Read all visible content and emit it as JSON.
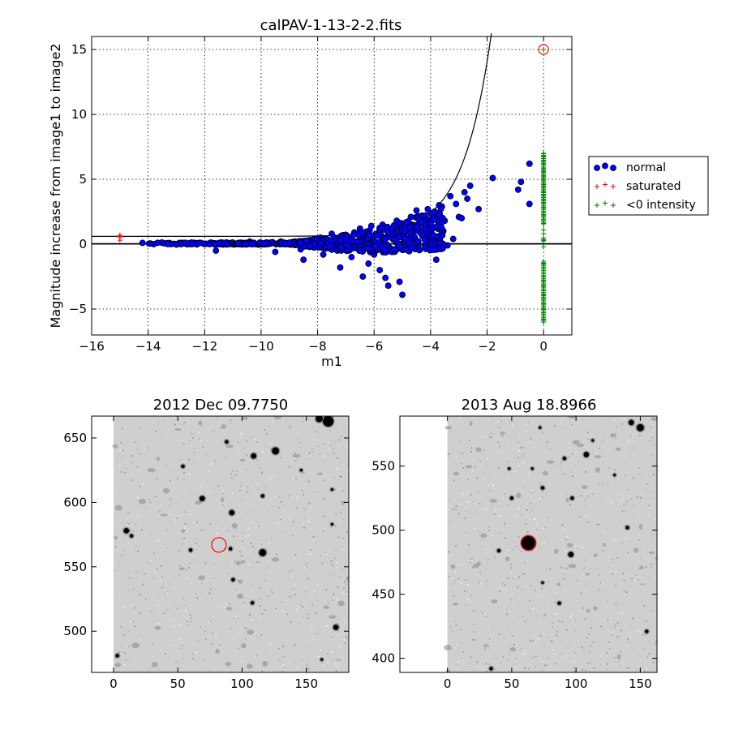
{
  "chart_data": [
    {
      "type": "scatter",
      "title": "calPAV-1-13-2-2.fits",
      "xlabel": "m1",
      "ylabel": "Magnitude increase from image1 to image2",
      "xlim": [
        -16,
        1
      ],
      "ylim": [
        -7,
        16
      ],
      "xticks": [
        -16,
        -14,
        -12,
        -10,
        -8,
        -6,
        -4,
        -2,
        0
      ],
      "xtick_labels": [
        "−16",
        "−14",
        "−12",
        "−10",
        "−8",
        "−6",
        "−4",
        "−2",
        "0"
      ],
      "yticks": [
        -5,
        0,
        5,
        10,
        15
      ],
      "ytick_labels": [
        "−5",
        "0",
        "5",
        "10",
        "15"
      ],
      "grid": true,
      "legend_position": "right, outside axes",
      "colors": {
        "normal": "#0000ff",
        "saturated": "#ff0000",
        "negative": "#008000",
        "circle": "#ff0000"
      },
      "series": [
        {
          "name": "normal",
          "marker": "circle",
          "color": "#0000ff",
          "description_points": "dense band rising from ~0 at m1=-14 to ~2-4 near m1=-3",
          "sample_points": [
            [
              -14.2,
              0.1
            ],
            [
              -13.8,
              0.0
            ],
            [
              -13.5,
              0.1
            ],
            [
              -13.2,
              0.0
            ],
            [
              -12.8,
              0.05
            ],
            [
              -12.5,
              0.0
            ],
            [
              -12.2,
              0.1
            ],
            [
              -12.0,
              0.0
            ],
            [
              -11.8,
              0.1
            ],
            [
              -11.6,
              -0.5
            ],
            [
              -11.4,
              0.1
            ],
            [
              -11.2,
              0.0
            ],
            [
              -11.0,
              0.05
            ],
            [
              -10.8,
              0.1
            ],
            [
              -10.6,
              0.0
            ],
            [
              -10.4,
              0.2
            ],
            [
              -10.2,
              0.0
            ],
            [
              -10.0,
              0.1
            ],
            [
              -9.8,
              0.0
            ],
            [
              -9.6,
              0.15
            ],
            [
              -9.5,
              -0.6
            ],
            [
              -9.3,
              0.2
            ],
            [
              -9.0,
              0.05
            ],
            [
              -8.8,
              0.2
            ],
            [
              -8.6,
              -0.4
            ],
            [
              -8.5,
              -1.2
            ],
            [
              -8.3,
              0.3
            ],
            [
              -8.1,
              0.0
            ],
            [
              -7.9,
              0.5
            ],
            [
              -7.8,
              -0.8
            ],
            [
              -7.6,
              0.3
            ],
            [
              -7.5,
              0.8
            ],
            [
              -7.3,
              -0.5
            ],
            [
              -7.2,
              -1.8
            ],
            [
              -7.1,
              0.6
            ],
            [
              -6.9,
              0.2
            ],
            [
              -6.8,
              -1.0
            ],
            [
              -6.7,
              0.9
            ],
            [
              -6.6,
              -0.3
            ],
            [
              -6.5,
              1.2
            ],
            [
              -6.4,
              -2.5
            ],
            [
              -6.3,
              0.4
            ],
            [
              -6.2,
              -1.5
            ],
            [
              -6.1,
              1.4
            ],
            [
              -6.0,
              -0.8
            ],
            [
              -5.9,
              0.7
            ],
            [
              -5.8,
              -2.0
            ],
            [
              -5.7,
              1.5
            ],
            [
              -5.6,
              -2.6
            ],
            [
              -5.5,
              -3.2
            ],
            [
              -5.4,
              1.0
            ],
            [
              -5.3,
              -0.4
            ],
            [
              -5.2,
              1.8
            ],
            [
              -5.1,
              -2.9
            ],
            [
              -5.0,
              -3.9
            ],
            [
              -4.9,
              1.2
            ],
            [
              -4.8,
              0.3
            ],
            [
              -4.7,
              2.1
            ],
            [
              -4.6,
              -0.2
            ],
            [
              -4.5,
              2.6
            ],
            [
              -4.4,
              1.0
            ],
            [
              -4.3,
              2.2
            ],
            [
              -4.2,
              0.5
            ],
            [
              -4.1,
              2.7
            ],
            [
              -4.0,
              1.5
            ],
            [
              -3.9,
              0.2
            ],
            [
              -3.8,
              -1.2
            ],
            [
              -3.7,
              3.0
            ],
            [
              -3.6,
              2.9
            ],
            [
              -3.5,
              1.8
            ],
            [
              -3.4,
              -0.1
            ],
            [
              -3.3,
              3.7
            ],
            [
              -3.2,
              0.4
            ],
            [
              -3.1,
              3.1
            ],
            [
              -3.0,
              2.1
            ],
            [
              -2.9,
              2.0
            ],
            [
              -2.8,
              4.0
            ],
            [
              -2.7,
              3.5
            ],
            [
              -2.6,
              4.5
            ],
            [
              -2.3,
              2.7
            ],
            [
              -1.8,
              5.1
            ],
            [
              -0.9,
              4.2
            ],
            [
              -0.8,
              4.8
            ],
            [
              -0.5,
              3.1
            ],
            [
              -0.5,
              6.2
            ]
          ]
        },
        {
          "name": "saturated",
          "marker": "plus",
          "color": "#ff0000",
          "points": [
            [
              -15.0,
              0.3
            ],
            [
              -15.0,
              0.5
            ],
            [
              -15.0,
              0.6
            ],
            [
              -15.0,
              0.7
            ]
          ]
        },
        {
          "name": "<0 intensity",
          "marker": "plus",
          "color": "#008000",
          "points": [
            [
              0,
              7.0
            ],
            [
              0,
              6.8
            ],
            [
              0,
              6.6
            ],
            [
              0,
              6.4
            ],
            [
              0,
              6.2
            ],
            [
              0,
              6.0
            ],
            [
              0,
              5.8
            ],
            [
              0,
              5.6
            ],
            [
              0,
              5.4
            ],
            [
              0,
              5.2
            ],
            [
              0,
              5.0
            ],
            [
              0,
              4.8
            ],
            [
              0,
              4.6
            ],
            [
              0,
              4.4
            ],
            [
              0,
              4.2
            ],
            [
              0,
              4.0
            ],
            [
              0,
              3.8
            ],
            [
              0,
              3.6
            ],
            [
              0,
              3.4
            ],
            [
              0,
              3.2
            ],
            [
              0,
              3.0
            ],
            [
              0,
              2.8
            ],
            [
              0,
              2.5
            ],
            [
              0,
              2.2
            ],
            [
              0,
              1.9
            ],
            [
              0,
              1.6
            ],
            [
              0,
              1.1
            ],
            [
              0,
              0.8
            ],
            [
              0,
              0.3
            ],
            [
              0,
              -0.2
            ],
            [
              0,
              -1.5
            ],
            [
              0,
              -1.8
            ],
            [
              0,
              -2.5
            ],
            [
              0,
              -2.8
            ],
            [
              0,
              -3.2
            ],
            [
              0,
              -3.5
            ],
            [
              0,
              -3.9
            ],
            [
              0,
              -4.1
            ],
            [
              0,
              -4.3
            ],
            [
              0,
              -4.6
            ],
            [
              0,
              -5.0
            ],
            [
              0,
              -5.3
            ],
            [
              0,
              -5.8
            ],
            [
              0,
              -6.0
            ],
            [
              0,
              15.0
            ]
          ]
        }
      ],
      "curve": {
        "description": "threshold curve y = 0.6 + exp(m1 + 4.6)",
        "x_start": -16,
        "x_end": -1.8
      },
      "hlines": [
        0.0,
        0.05
      ],
      "highlight_circle": {
        "x": 0,
        "y": 15
      }
    },
    {
      "type": "image",
      "title": "2012 Dec 09.7750",
      "xlim": [
        -17,
        183
      ],
      "ylim": [
        468,
        667
      ],
      "xticks": [
        0,
        50,
        100,
        150
      ],
      "xtick_labels": [
        "0",
        "50",
        "100",
        "150"
      ],
      "yticks": [
        500,
        550,
        600,
        650
      ],
      "ytick_labels": [
        "500",
        "550",
        "600",
        "650"
      ],
      "image_extent": {
        "x": [
          0,
          183
        ],
        "y": [
          468,
          667
        ]
      },
      "stars": [
        [
          167,
          663,
          6
        ],
        [
          160,
          665,
          4
        ],
        [
          126,
          640,
          4
        ],
        [
          109,
          636,
          3
        ],
        [
          88,
          647,
          2
        ],
        [
          69,
          603,
          3
        ],
        [
          116,
          605,
          2
        ],
        [
          92,
          592,
          3
        ],
        [
          10,
          578,
          3
        ],
        [
          14,
          574,
          2
        ],
        [
          116,
          561,
          4
        ],
        [
          91,
          564,
          2
        ],
        [
          93,
          540,
          2
        ],
        [
          108,
          522,
          2
        ],
        [
          3,
          481,
          2
        ],
        [
          173,
          503,
          3
        ],
        [
          162,
          478,
          1.5
        ],
        [
          170,
          583,
          1.5
        ],
        [
          54,
          628,
          2
        ],
        [
          146,
          625,
          1.5
        ],
        [
          170,
          610,
          1.5
        ],
        [
          60,
          563,
          2
        ]
      ],
      "target_circle": {
        "x": 82,
        "y": 567,
        "r": 6
      },
      "colors": {
        "background": "#cfcfcf",
        "circle": "#ff0000"
      }
    },
    {
      "type": "image",
      "title": "2013 Aug 18.8966",
      "xlim": [
        -37,
        163
      ],
      "ylim": [
        389,
        589
      ],
      "xticks": [
        0,
        50,
        100,
        150
      ],
      "xtick_labels": [
        "0",
        "50",
        "100",
        "150"
      ],
      "yticks": [
        400,
        450,
        500,
        550
      ],
      "ytick_labels": [
        "400",
        "450",
        "500",
        "550"
      ],
      "image_extent": {
        "x": [
          0,
          163
        ],
        "y": [
          389,
          589
        ]
      },
      "stars": [
        [
          63,
          490,
          8
        ],
        [
          150,
          580,
          4
        ],
        [
          143,
          584,
          3
        ],
        [
          108,
          559,
          3
        ],
        [
          91,
          556,
          2
        ],
        [
          72,
          580,
          1.5
        ],
        [
          50,
          525,
          2
        ],
        [
          97,
          525,
          2
        ],
        [
          74,
          533,
          2
        ],
        [
          96,
          481,
          3
        ],
        [
          40,
          484,
          2
        ],
        [
          74,
          459,
          1.5
        ],
        [
          140,
          502,
          2
        ],
        [
          87,
          443,
          2
        ],
        [
          34,
          392,
          2
        ],
        [
          155,
          421,
          2
        ],
        [
          113,
          570,
          1.5
        ],
        [
          48,
          548,
          1.5
        ],
        [
          130,
          543,
          1.5
        ],
        [
          66,
          548,
          1.5
        ]
      ],
      "target_circle": {
        "x": 63,
        "y": 490,
        "r": 6
      },
      "colors": {
        "background": "#cfcfcf",
        "circle": "#ff0000"
      }
    }
  ],
  "legend": {
    "items": [
      {
        "label": "normal",
        "marker": "circle",
        "color": "#0000ff"
      },
      {
        "label": "saturated",
        "marker": "plus",
        "color": "#ff0000"
      },
      {
        "label": "<0 intensity",
        "marker": "plus",
        "color": "#008000"
      }
    ]
  }
}
